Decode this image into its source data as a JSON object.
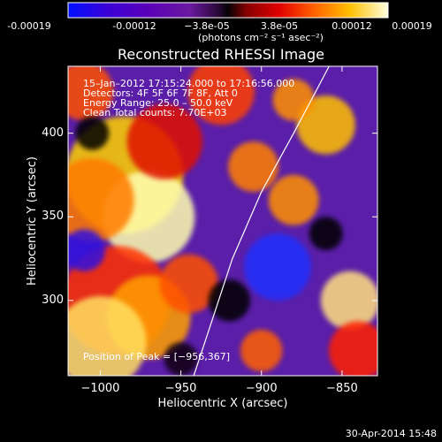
{
  "colorbar": {
    "tick_labels": [
      "-0.00019",
      "-0.00012",
      "−3.8e-05",
      "3.8e-05",
      "0.00012",
      "0.00019"
    ],
    "units": "(photons cm⁻² s⁻¹ asec⁻²)",
    "range": [
      -0.00019,
      0.00019
    ]
  },
  "chart_data": {
    "type": "heatmap",
    "title": "Reconstructed RHESSI Image",
    "xlabel": "Heliocentric X (arcsec)",
    "ylabel": "Heliocentric Y (arcsec)",
    "xlim": [
      -1020,
      -828
    ],
    "ylim": [
      255,
      440
    ],
    "x_ticks": [
      "−1000",
      "−950",
      "−900",
      "−850"
    ],
    "y_ticks": [
      "300",
      "350",
      "400"
    ],
    "x_tick_values": [
      -1000,
      -950,
      -900,
      -850
    ],
    "y_tick_values": [
      300,
      350,
      400
    ],
    "annotations": [
      "15–Jan–2012 17:15:24.000 to 17:16:56.000",
      "Detectors: 4F 5F 6F 7F 8F, Att 0",
      "Energy Range: 25.0 – 50.0 keV",
      "Clean      Total counts: 7.70E+03"
    ],
    "peak_label": "Position of Peak = [−956,367]",
    "peak_position": [
      -956,
      367
    ],
    "limb_curve": [
      [
        -942,
        255
      ],
      [
        -930,
        290
      ],
      [
        -918,
        325
      ],
      [
        -900,
        365
      ],
      [
        -880,
        400
      ],
      [
        -858,
        440
      ]
    ]
  },
  "footer": {
    "date": "30-Apr-2014 15:48"
  }
}
